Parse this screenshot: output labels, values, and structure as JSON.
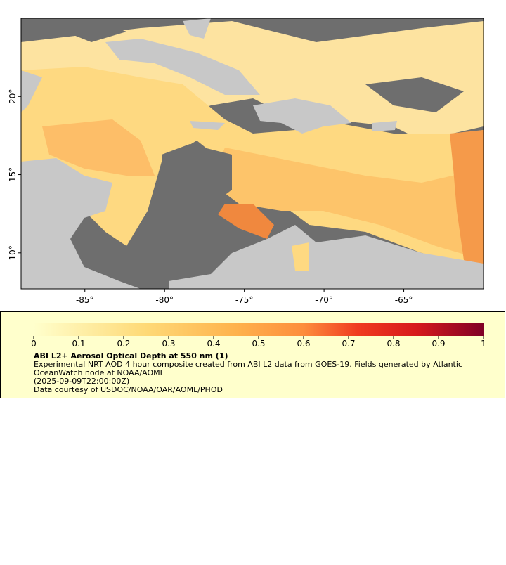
{
  "map": {
    "xlim": [
      -89,
      -60
    ],
    "ylim": [
      7.7,
      25
    ],
    "xticks": [
      {
        "value": -85,
        "label": "-85°"
      },
      {
        "value": -80,
        "label": "-80°"
      },
      {
        "value": -75,
        "label": "-75°"
      },
      {
        "value": -70,
        "label": "-70°"
      },
      {
        "value": -65,
        "label": "-65°"
      }
    ],
    "yticks": [
      {
        "value": 20,
        "label": "20°"
      },
      {
        "value": 15,
        "label": "15°"
      },
      {
        "value": 10,
        "label": "10°"
      }
    ]
  },
  "colorbar": {
    "range": [
      0,
      1
    ],
    "ticks": [
      0,
      0.1,
      0.2,
      0.3,
      0.4,
      0.5,
      0.6,
      0.7,
      0.8,
      0.9,
      1
    ]
  },
  "legend": {
    "title": "ABI L2+ Aerosol Optical Depth at 550 nm (1)",
    "description": [
      "Experimental NRT AOD 4 hour composite created from ABI L2 data from GOES-19. Fields generated by Atlantic",
      "OceanWatch node at NOAA/AOML"
    ],
    "date": "(2025-09-09T22:00:00Z)",
    "credit": "Data courtesy of USDOC/NOAA/OAR/AOML/PHOD"
  }
}
